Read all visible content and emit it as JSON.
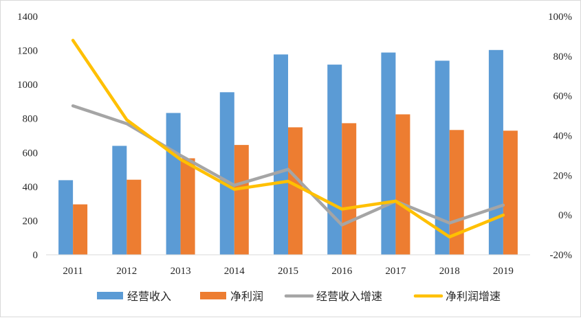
{
  "chart_data": {
    "type": "bar",
    "categories": [
      "2011",
      "2012",
      "2013",
      "2014",
      "2015",
      "2016",
      "2017",
      "2018",
      "2019"
    ],
    "series": [
      {
        "name": "经营收入",
        "type": "bar",
        "axis": "left",
        "color": "#5b9bd5",
        "values": [
          438,
          640,
          833,
          955,
          1177,
          1117,
          1188,
          1140,
          1203
        ]
      },
      {
        "name": "净利润",
        "type": "bar",
        "axis": "left",
        "color": "#ed7d31",
        "values": [
          296,
          441,
          567,
          645,
          749,
          773,
          825,
          733,
          729
        ]
      },
      {
        "name": "经营收入增速",
        "type": "line",
        "axis": "right",
        "color": "#a5a5a5",
        "values": [
          0.55,
          0.46,
          0.3,
          0.15,
          0.23,
          -0.05,
          0.07,
          -0.04,
          0.05
        ]
      },
      {
        "name": "净利润增速",
        "type": "line",
        "axis": "right",
        "color": "#ffc000",
        "values": [
          0.88,
          0.48,
          0.28,
          0.13,
          0.17,
          0.03,
          0.07,
          -0.11,
          0.0
        ]
      }
    ],
    "left_axis": {
      "min": 0,
      "max": 1400,
      "ticks": [
        "0",
        "200",
        "400",
        "600",
        "800",
        "1000",
        "1200",
        "1400"
      ]
    },
    "right_axis": {
      "min": -0.2,
      "max": 1.0,
      "ticks": [
        "-20%",
        "0%",
        "20%",
        "40%",
        "60%",
        "80%",
        "100%"
      ]
    },
    "title": "",
    "xlabel": "",
    "ylabel": "",
    "y2label": "",
    "legend": "bottom",
    "grid": false
  }
}
